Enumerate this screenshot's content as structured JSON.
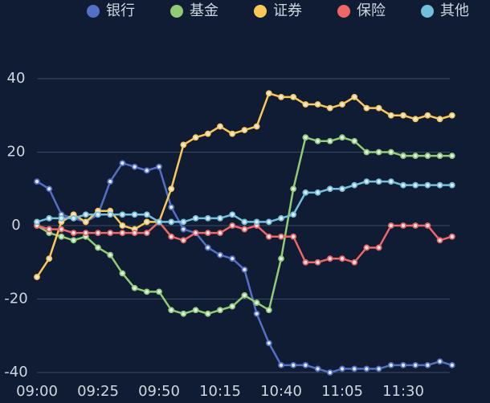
{
  "chart_data": {
    "type": "line",
    "categories": [
      "09:00",
      null,
      null,
      null,
      null,
      "09:25",
      null,
      null,
      null,
      null,
      "09:50",
      null,
      null,
      null,
      null,
      "10:15",
      null,
      null,
      null,
      null,
      "10:40",
      null,
      null,
      null,
      null,
      "11:05",
      null,
      null,
      null,
      null,
      "11:30",
      null,
      null,
      null,
      null
    ],
    "series": [
      {
        "name": "银行",
        "color": "#5470c6",
        "values": [
          12,
          10,
          3,
          2,
          1,
          3,
          12,
          17,
          16,
          15,
          16,
          5,
          -1,
          -2,
          -6,
          -8,
          -9,
          -12,
          -24,
          -32,
          -38,
          -38,
          -38,
          -39,
          -40,
          -39,
          -39,
          -39,
          -39,
          -38,
          -38,
          -38,
          -38,
          -37,
          -38
        ]
      },
      {
        "name": "基金",
        "color": "#91cc75",
        "values": [
          0,
          -2,
          -3,
          -4,
          -3,
          -6,
          -8,
          -13,
          -17,
          -18,
          -18,
          -23,
          -24,
          -23,
          -24,
          -23,
          -22,
          -19,
          -21,
          -23,
          -9,
          10,
          24,
          23,
          23,
          24,
          23,
          20,
          20,
          20,
          19,
          19,
          19,
          19,
          19
        ]
      },
      {
        "name": "证券",
        "color": "#fac858",
        "values": [
          -14,
          -9,
          1,
          3,
          1,
          4,
          4,
          0,
          -1,
          1,
          1,
          10,
          22,
          24,
          25,
          27,
          25,
          26,
          27,
          36,
          35,
          35,
          33,
          33,
          32,
          33,
          35,
          32,
          32,
          30,
          30,
          29,
          30,
          29,
          30
        ]
      },
      {
        "name": "保险",
        "color": "#ee6666",
        "values": [
          0,
          -1,
          -1,
          -2,
          -2,
          -2,
          -2,
          -2,
          -2,
          -2,
          1,
          -3,
          -4,
          -2,
          -2,
          -2,
          0,
          -1,
          0,
          -3,
          -3,
          -3,
          -10,
          -10,
          -9,
          -9,
          -10,
          -6,
          -6,
          0,
          0,
          0,
          0,
          -4,
          -3
        ]
      },
      {
        "name": "其他",
        "color": "#73c0de",
        "values": [
          1,
          2,
          2,
          2,
          3,
          3,
          3,
          3,
          3,
          3,
          1,
          1,
          1,
          2,
          2,
          2,
          3,
          1,
          1,
          1,
          2,
          3,
          9,
          9,
          10,
          10,
          11,
          12,
          12,
          12,
          11,
          11,
          11,
          11,
          11
        ]
      }
    ],
    "ylim": [
      -40,
      40
    ],
    "yticks": [
      -40,
      -20,
      0,
      20,
      40
    ],
    "grid": true,
    "legend": "top-right"
  }
}
